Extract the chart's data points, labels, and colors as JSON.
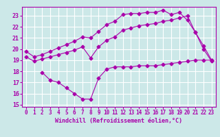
{
  "xlabel": "Windchill (Refroidissement éolien,°C)",
  "background_color": "#cce8e8",
  "grid_color": "#ffffff",
  "line_color": "#aa00aa",
  "xlim": [
    -0.5,
    23.5
  ],
  "ylim": [
    14.8,
    23.8
  ],
  "yticks": [
    15,
    16,
    17,
    18,
    19,
    20,
    21,
    22,
    23
  ],
  "xticks": [
    0,
    1,
    2,
    3,
    4,
    5,
    6,
    7,
    8,
    9,
    10,
    11,
    12,
    13,
    14,
    15,
    16,
    17,
    18,
    19,
    20,
    21,
    22,
    23
  ],
  "series": [
    {
      "x": [
        0,
        1,
        2,
        3,
        4,
        5,
        6,
        7,
        8,
        9,
        10,
        11,
        12,
        13,
        14,
        15,
        16,
        17,
        18,
        19,
        20,
        21,
        22,
        23
      ],
      "y": [
        19.8,
        19.3,
        19.5,
        19.8,
        20.1,
        20.4,
        20.7,
        21.1,
        21.0,
        21.6,
        22.2,
        22.5,
        23.1,
        23.2,
        23.2,
        23.3,
        23.3,
        23.5,
        23.1,
        23.3,
        22.6,
        21.5,
        20.0,
        18.9
      ]
    },
    {
      "x": [
        0,
        1,
        2,
        3,
        4,
        5,
        6,
        7,
        8,
        9,
        10,
        11,
        12,
        13,
        14,
        15,
        16,
        17,
        18,
        19,
        20,
        21,
        22,
        23
      ],
      "y": [
        19.3,
        18.9,
        19.1,
        19.3,
        19.5,
        19.7,
        19.9,
        20.2,
        19.2,
        20.2,
        20.8,
        21.1,
        21.7,
        21.9,
        22.1,
        22.2,
        22.3,
        22.5,
        22.6,
        22.8,
        23.0,
        21.5,
        20.3,
        19.0
      ]
    },
    {
      "x": [
        2,
        3,
        4,
        5,
        6,
        7,
        8,
        9,
        10,
        11,
        12,
        13,
        14,
        15,
        16,
        17,
        18,
        19,
        20,
        21,
        22,
        23
      ],
      "y": [
        17.9,
        17.2,
        17.0,
        16.5,
        16.0,
        15.5,
        15.5,
        17.4,
        18.2,
        18.4,
        18.4,
        18.4,
        18.5,
        18.5,
        18.5,
        18.6,
        18.7,
        18.8,
        18.9,
        19.0,
        19.0,
        19.0
      ]
    }
  ]
}
